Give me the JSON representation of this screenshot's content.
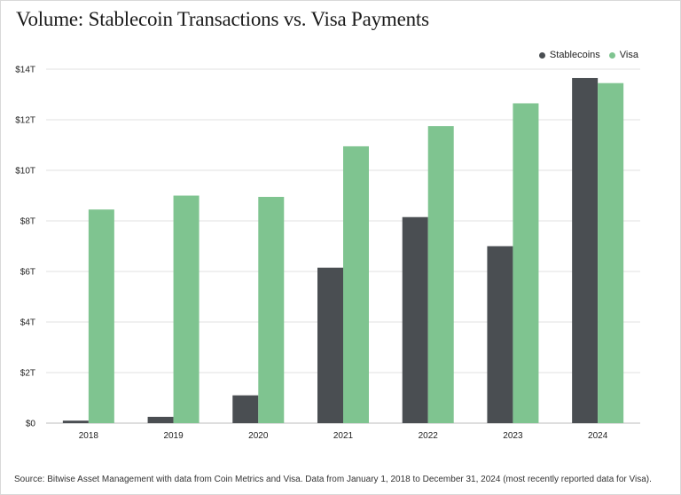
{
  "title": "Volume: Stablecoin Transactions vs. Visa Payments",
  "source": "Source: Bitwise Asset Management with data from Coin Metrics and Visa. Data from January 1, 2018 to December 31, 2024 (most recently reported data for Visa).",
  "colors": {
    "stablecoins": "#4a4e52",
    "visa": "#7fc490",
    "grid": "#e2e2e2"
  },
  "chart_data": {
    "type": "bar",
    "title": "Volume: Stablecoin Transactions vs. Visa Payments",
    "categories": [
      "2018",
      "2019",
      "2020",
      "2021",
      "2022",
      "2023",
      "2024"
    ],
    "y_ticks": [
      "$0",
      "$2T",
      "$4T",
      "$6T",
      "$8T",
      "$10T",
      "$12T",
      "$14T"
    ],
    "ylim": [
      0,
      14
    ],
    "grid": true,
    "legend_position": "top-right",
    "series": [
      {
        "name": "Stablecoins",
        "values": [
          0.1,
          0.25,
          1.1,
          6.15,
          8.15,
          7.0,
          13.65
        ]
      },
      {
        "name": "Visa",
        "values": [
          8.45,
          9.0,
          8.95,
          10.95,
          11.75,
          12.65,
          13.45
        ]
      }
    ]
  }
}
